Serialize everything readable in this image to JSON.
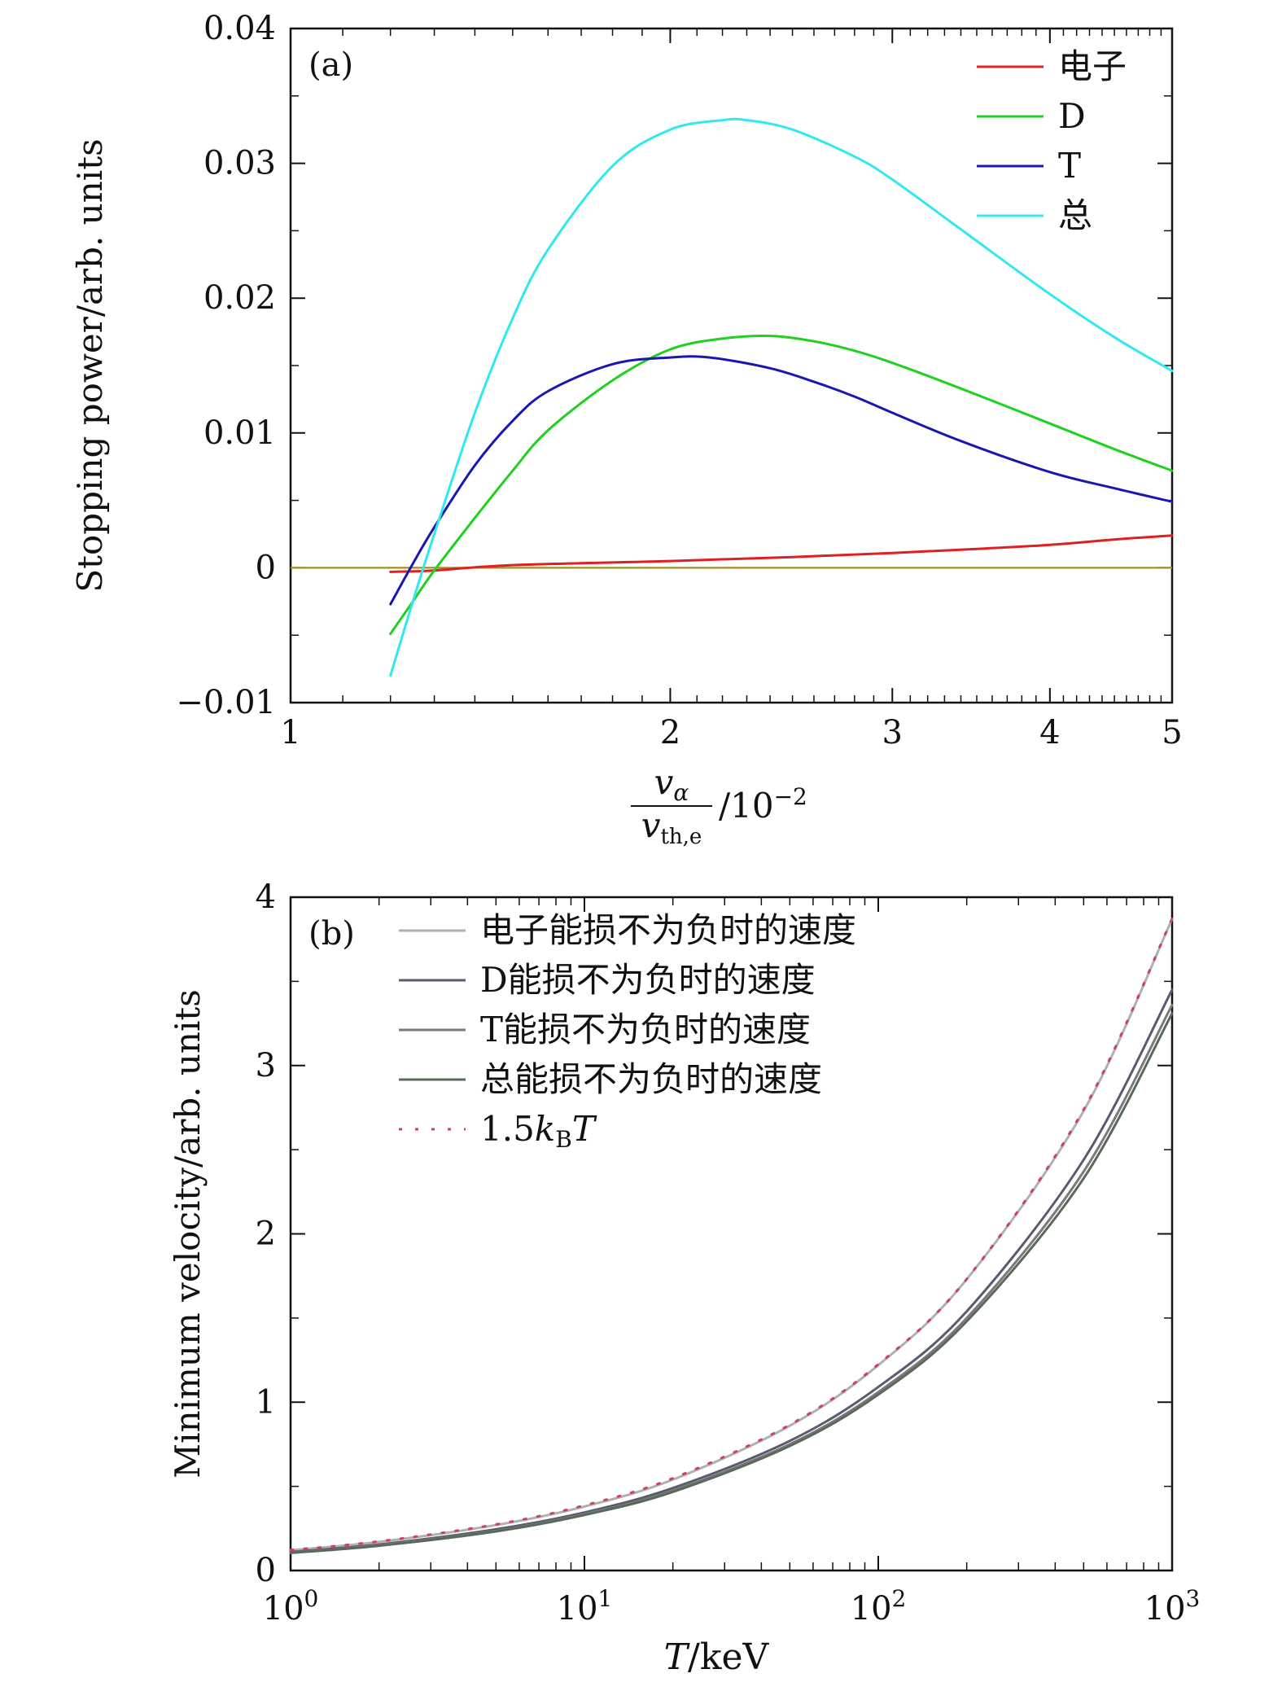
{
  "chart_data": [
    {
      "panel_label": "(a)",
      "type": "line",
      "x_scale": "log",
      "xlim": [
        1,
        5
      ],
      "ylim": [
        -0.01,
        0.04
      ],
      "xticks": [
        1,
        2,
        3,
        4,
        5
      ],
      "xtick_labels": [
        "1",
        "2",
        "3",
        "4",
        "5"
      ],
      "yticks": [
        -0.01,
        0,
        0.01,
        0.02,
        0.03,
        0.04
      ],
      "ytick_labels": [
        "−0.01",
        "0",
        "0.01",
        "0.02",
        "0.03",
        "0.04"
      ],
      "ylabel": "Stopping power/arb. units",
      "xlabel": {
        "numerator": "v",
        "numerator_sub": "α",
        "denominator": "v",
        "denominator_sub": "th,e",
        "suffix": "/10",
        "suffix_sup": "−2"
      },
      "legend_position": "top-right",
      "zero_line": {
        "y": 0,
        "color": "#a09020"
      },
      "series": [
        {
          "name": "电子",
          "color": "#e02020",
          "x": [
            1.2,
            1.3,
            1.5,
            2.0,
            2.5,
            3.0,
            3.5,
            4.0,
            4.5,
            5.0
          ],
          "y": [
            -0.0003,
            -0.0002,
            0.0002,
            0.0005,
            0.0008,
            0.0011,
            0.0014,
            0.0017,
            0.0021,
            0.0024
          ]
        },
        {
          "name": "D",
          "color": "#20d020",
          "x": [
            1.2,
            1.25,
            1.3,
            1.4,
            1.5,
            1.6,
            1.8,
            2.0,
            2.2,
            2.4,
            2.6,
            2.8,
            3.0,
            3.4,
            4.0,
            4.5,
            5.0
          ],
          "y": [
            -0.0049,
            -0.0025,
            -0.0002,
            0.0037,
            0.0072,
            0.0102,
            0.0139,
            0.0162,
            0.017,
            0.0172,
            0.0168,
            0.0161,
            0.0152,
            0.0133,
            0.0107,
            0.0088,
            0.0072
          ]
        },
        {
          "name": "T",
          "color": "#1818b0",
          "x": [
            1.2,
            1.25,
            1.3,
            1.4,
            1.5,
            1.6,
            1.8,
            2.0,
            2.15,
            2.4,
            2.6,
            2.8,
            3.0,
            3.4,
            4.0,
            4.5,
            5.0
          ],
          "y": [
            -0.0027,
            0.0003,
            0.003,
            0.0076,
            0.0109,
            0.0131,
            0.0151,
            0.0156,
            0.0156,
            0.0148,
            0.0138,
            0.0127,
            0.0115,
            0.0094,
            0.0071,
            0.0059,
            0.0049
          ]
        },
        {
          "name": "总",
          "color": "#30e8f0",
          "x": [
            1.2,
            1.25,
            1.3,
            1.4,
            1.5,
            1.6,
            1.8,
            2.0,
            2.2,
            2.3,
            2.5,
            2.8,
            3.0,
            3.4,
            4.0,
            4.5,
            5.0
          ],
          "y": [
            -0.008,
            -0.0025,
            0.0025,
            0.0115,
            0.0185,
            0.0236,
            0.0298,
            0.0325,
            0.0332,
            0.0332,
            0.0325,
            0.0305,
            0.0288,
            0.0251,
            0.0203,
            0.0171,
            0.0146
          ]
        }
      ]
    },
    {
      "panel_label": "(b)",
      "type": "line",
      "x_scale": "log",
      "xlim": [
        1,
        1000
      ],
      "ylim": [
        0,
        4
      ],
      "xticks": [
        1,
        10,
        100,
        1000
      ],
      "xtick_labels": [
        {
          "base": "10",
          "exp": "0"
        },
        {
          "base": "10",
          "exp": "1"
        },
        {
          "base": "10",
          "exp": "2"
        },
        {
          "base": "10",
          "exp": "3"
        }
      ],
      "yticks": [
        0,
        1,
        2,
        3,
        4
      ],
      "ytick_labels": [
        "0",
        "1",
        "2",
        "3",
        "4"
      ],
      "ylabel": "Minimum velocity/arb. units",
      "xlabel": {
        "var": "T",
        "unit": "/keV"
      },
      "legend_position": "top-left",
      "series": [
        {
          "name": "电子能损不为负时的速度",
          "color": "#b0b0b0",
          "dash": "",
          "x": [
            1,
            2,
            5,
            10,
            20,
            50,
            100,
            200,
            500,
            1000
          ],
          "y": [
            0.12,
            0.17,
            0.27,
            0.38,
            0.54,
            0.86,
            1.22,
            1.73,
            2.73,
            3.87
          ]
        },
        {
          "name": "D能损不为负时的速度",
          "color": "#5a5a70",
          "dash": "",
          "x": [
            1,
            2,
            5,
            10,
            20,
            50,
            100,
            200,
            500,
            1000
          ],
          "y": [
            0.11,
            0.155,
            0.245,
            0.345,
            0.49,
            0.77,
            1.09,
            1.54,
            2.44,
            3.45
          ]
        },
        {
          "name": "T能损不为负时的速度",
          "color": "#7a7a7a",
          "dash": "",
          "x": [
            1,
            2,
            5,
            10,
            20,
            50,
            100,
            200,
            500,
            1000
          ],
          "y": [
            0.105,
            0.15,
            0.235,
            0.335,
            0.475,
            0.75,
            1.06,
            1.5,
            2.37,
            3.36
          ]
        },
        {
          "name": "总能损不为负时的速度",
          "color": "#5a6a5a",
          "dash": "",
          "x": [
            1,
            2,
            5,
            10,
            20,
            50,
            100,
            200,
            500,
            1000
          ],
          "y": [
            0.104,
            0.147,
            0.232,
            0.33,
            0.467,
            0.74,
            1.045,
            1.48,
            2.33,
            3.31
          ]
        },
        {
          "name": "1.5k_B T",
          "color": "#d04060",
          "dash": "3,14",
          "x": [
            1,
            2,
            5,
            10,
            20,
            50,
            100,
            200,
            500,
            1000
          ],
          "y": [
            0.122,
            0.173,
            0.274,
            0.387,
            0.548,
            0.866,
            1.225,
            1.732,
            2.739,
            3.873
          ]
        }
      ],
      "legend_last_label": {
        "prefix": "1.5",
        "k": "k",
        "sub": "B",
        "T": "T"
      }
    }
  ]
}
